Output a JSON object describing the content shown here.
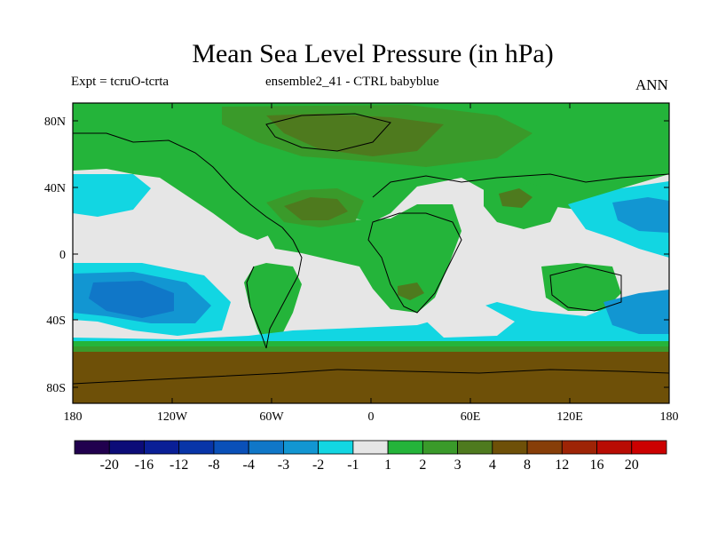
{
  "title": "Mean Sea Level Pressure (in hPa)",
  "subtitle_left": "Expt = tcruO-tcrta",
  "subtitle_center": "ensemble2_41 - CTRL babyblue",
  "subtitle_right": "ANN",
  "lat_ticks": [
    "80N",
    "40N",
    "0",
    "40S",
    "80S"
  ],
  "lon_ticks": [
    "180",
    "120W",
    "60W",
    "0",
    "60E",
    "120E",
    "180"
  ],
  "colorbar": {
    "labels": [
      "-20",
      "-16",
      "-12",
      "-8",
      "-4",
      "-3",
      "-2",
      "-1",
      "1",
      "2",
      "3",
      "4",
      "8",
      "12",
      "16",
      "20"
    ],
    "colors": [
      "#21004e",
      "#0c0c78",
      "#0a1f96",
      "#0835a8",
      "#0a50b8",
      "#1077c8",
      "#1296d2",
      "#12d6e2",
      "#e6e6e6",
      "#24b43a",
      "#3a9a2a",
      "#4e7a1e",
      "#6e5008",
      "#873e08",
      "#9e2406",
      "#b80c04",
      "#cc0000"
    ]
  },
  "field_colors": {
    "neutral": "#e6e6e6",
    "pos1": "#24b43a",
    "pos2": "#3a9a2a",
    "pos3": "#4e7a1e",
    "pos4": "#6e5008",
    "neg1": "#12d6e2",
    "neg2": "#1296d2",
    "neg3": "#1077c8"
  }
}
